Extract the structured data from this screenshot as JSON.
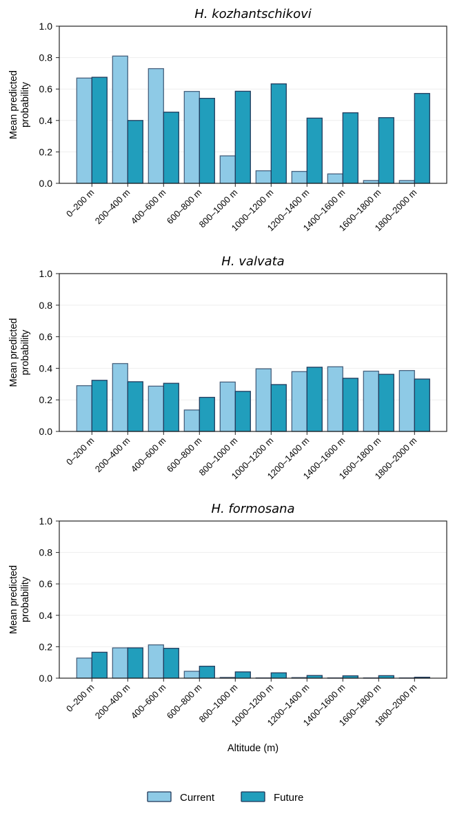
{
  "colors": {
    "current": "#8ecae6",
    "future": "#219ebc",
    "edge": "#1d3557",
    "grid": "#eeeeee",
    "axis": "#222222"
  },
  "legend": {
    "items": [
      {
        "key": "current",
        "label": "Current"
      },
      {
        "key": "future",
        "label": "Future"
      }
    ],
    "placement": "bottom-center"
  },
  "chart_data": [
    {
      "type": "bar",
      "title": "H.  kozhantschikovi",
      "xlabel": "",
      "ylabel": "Mean predicted probability",
      "ylabel_lines": [
        "Mean predicted",
        "probability"
      ],
      "ylim": [
        0,
        1.0
      ],
      "yticks": [
        "0.0",
        "0.2",
        "0.4",
        "0.6",
        "0.8",
        "1.0"
      ],
      "grid": "horizontal",
      "categories": [
        "0–200 m",
        "200–400 m",
        "400–600 m",
        "600–800 m",
        "800–1000 m",
        "1000–1200 m",
        "1200–1400 m",
        "1400–1600 m",
        "1600–1800 m",
        "1800–2000 m"
      ],
      "series": [
        {
          "name": "Current",
          "values": [
            0.67,
            0.81,
            0.73,
            0.585,
            0.175,
            0.08,
            0.076,
            0.06,
            0.018,
            0.018
          ]
        },
        {
          "name": "Future",
          "values": [
            0.675,
            0.4,
            0.453,
            0.541,
            0.586,
            0.633,
            0.415,
            0.449,
            0.418,
            0.572
          ]
        }
      ]
    },
    {
      "type": "bar",
      "title": "H.  valvata",
      "xlabel": "",
      "ylabel": "Mean predicted probability",
      "ylabel_lines": [
        "Mean predicted",
        "probability"
      ],
      "ylim": [
        0,
        1.0
      ],
      "yticks": [
        "0.0",
        "0.2",
        "0.4",
        "0.6",
        "0.8",
        "1.0"
      ],
      "grid": "horizontal",
      "categories": [
        "0–200 m",
        "200–400 m",
        "400–600 m",
        "600–800 m",
        "800–1000 m",
        "1000–1200 m",
        "1200–1400 m",
        "1400–1600 m",
        "1600–1800 m",
        "1800–2000 m"
      ],
      "series": [
        {
          "name": "Current",
          "values": [
            0.29,
            0.43,
            0.287,
            0.136,
            0.313,
            0.397,
            0.379,
            0.41,
            0.382,
            0.386
          ]
        },
        {
          "name": "Future",
          "values": [
            0.324,
            0.315,
            0.305,
            0.216,
            0.254,
            0.297,
            0.407,
            0.337,
            0.362,
            0.332
          ]
        }
      ]
    },
    {
      "type": "bar",
      "title": "H.  formosana",
      "xlabel": "Altitude (m)",
      "ylabel": "Mean predicted probability",
      "ylabel_lines": [
        "Mean predicted",
        "probability"
      ],
      "ylim": [
        0,
        1.0
      ],
      "yticks": [
        "0.0",
        "0.2",
        "0.4",
        "0.6",
        "0.8",
        "1.0"
      ],
      "grid": "horizontal",
      "categories": [
        "0–200 m",
        "200–400 m",
        "400–600 m",
        "600–800 m",
        "800–1000 m",
        "1000–1200 m",
        "1200–1400 m",
        "1400–1600 m",
        "1600–1800 m",
        "1800–2000 m"
      ],
      "series": [
        {
          "name": "Current",
          "values": [
            0.128,
            0.193,
            0.212,
            0.044,
            0.005,
            0.002,
            0.004,
            0.002,
            0.002,
            0.002
          ]
        },
        {
          "name": "Future",
          "values": [
            0.165,
            0.193,
            0.19,
            0.076,
            0.04,
            0.034,
            0.017,
            0.015,
            0.016,
            0.006
          ]
        }
      ]
    }
  ]
}
